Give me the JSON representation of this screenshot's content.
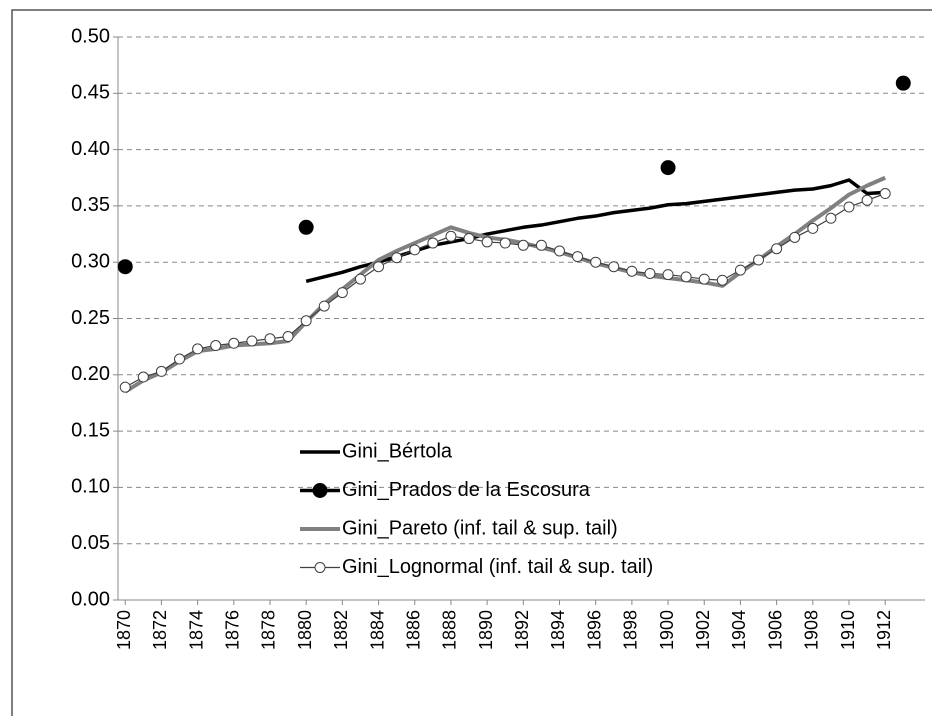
{
  "chart_data": {
    "type": "line",
    "x": [
      1870,
      1871,
      1872,
      1873,
      1874,
      1875,
      1876,
      1877,
      1878,
      1879,
      1880,
      1881,
      1882,
      1883,
      1884,
      1885,
      1886,
      1887,
      1888,
      1889,
      1890,
      1891,
      1892,
      1893,
      1894,
      1895,
      1896,
      1897,
      1898,
      1899,
      1900,
      1901,
      1902,
      1903,
      1904,
      1905,
      1906,
      1907,
      1908,
      1909,
      1910,
      1911,
      1912,
      1913
    ],
    "xlim": [
      1869.6,
      1914.2
    ],
    "xticks": [
      1870,
      1872,
      1874,
      1876,
      1878,
      1880,
      1882,
      1884,
      1886,
      1888,
      1890,
      1892,
      1894,
      1896,
      1898,
      1900,
      1902,
      1904,
      1906,
      1908,
      1910,
      1912
    ],
    "ylim": [
      0,
      0.5
    ],
    "yticks": [
      {
        "value": 0,
        "label": "0.00"
      },
      {
        "value": 0.05,
        "label": "0.05"
      },
      {
        "value": 0.1,
        "label": "0.10"
      },
      {
        "value": 0.15,
        "label": "0.15"
      },
      {
        "value": 0.2,
        "label": "0.20"
      },
      {
        "value": 0.25,
        "label": "0.25"
      },
      {
        "value": 0.3,
        "label": "0.30"
      },
      {
        "value": 0.35,
        "label": "0.35"
      },
      {
        "value": 0.4,
        "label": "0.40"
      },
      {
        "value": 0.45,
        "label": "0.45"
      },
      {
        "value": 0.5,
        "label": "0.50"
      }
    ],
    "grid": true,
    "series": [
      {
        "name": "Gini_Bértola",
        "color": "#000000",
        "line": true,
        "line_width": 3.5,
        "marker": "none",
        "values": [
          null,
          null,
          null,
          null,
          null,
          null,
          null,
          null,
          null,
          null,
          0.283,
          0.287,
          0.291,
          0.296,
          0.3,
          0.305,
          0.31,
          0.315,
          0.318,
          0.321,
          0.325,
          0.328,
          0.331,
          0.333,
          0.336,
          0.339,
          0.341,
          0.344,
          0.346,
          0.348,
          0.351,
          0.352,
          0.354,
          0.356,
          0.358,
          0.36,
          0.362,
          0.364,
          0.365,
          0.368,
          0.373,
          0.361,
          0.362,
          null
        ]
      },
      {
        "name": "Gini_Prados de la Escosura",
        "color": "#000000",
        "line": false,
        "line_width": 3.5,
        "marker": "filled",
        "values": [
          0.296,
          null,
          null,
          null,
          null,
          null,
          null,
          null,
          null,
          null,
          0.331,
          null,
          null,
          null,
          null,
          null,
          null,
          null,
          null,
          null,
          null,
          null,
          null,
          null,
          null,
          null,
          null,
          null,
          null,
          null,
          0.384,
          null,
          null,
          null,
          null,
          null,
          null,
          null,
          null,
          null,
          null,
          null,
          null,
          0.459
        ]
      },
      {
        "name": "Gini_Pareto (inf. tail & sup. tail)",
        "color": "#808080",
        "line": true,
        "line_width": 4,
        "marker": "none",
        "values": [
          0.185,
          0.195,
          0.202,
          0.212,
          0.221,
          0.223,
          0.226,
          0.227,
          0.228,
          0.23,
          0.247,
          0.263,
          0.276,
          0.289,
          0.302,
          0.31,
          0.317,
          0.324,
          0.331,
          0.326,
          0.322,
          0.32,
          0.317,
          0.313,
          0.309,
          0.304,
          0.299,
          0.295,
          0.291,
          0.288,
          0.286,
          0.284,
          0.282,
          0.279,
          0.291,
          0.302,
          0.314,
          0.325,
          0.337,
          0.348,
          0.36,
          0.368,
          0.375,
          null
        ]
      },
      {
        "name": "Gini_Lognormal (inf. tail & sup. tail)",
        "color": "#404040",
        "line": true,
        "line_width": 1.2,
        "marker": "open",
        "values": [
          0.189,
          0.198,
          0.203,
          0.214,
          0.223,
          0.226,
          0.228,
          0.23,
          0.232,
          0.234,
          0.248,
          0.261,
          0.273,
          0.285,
          0.296,
          0.304,
          0.311,
          0.317,
          0.323,
          0.321,
          0.318,
          0.317,
          0.315,
          0.315,
          0.31,
          0.305,
          0.3,
          0.296,
          0.292,
          0.29,
          0.289,
          0.287,
          0.285,
          0.284,
          0.293,
          0.302,
          0.312,
          0.322,
          0.33,
          0.339,
          0.349,
          0.355,
          0.361,
          null
        ]
      }
    ]
  }
}
